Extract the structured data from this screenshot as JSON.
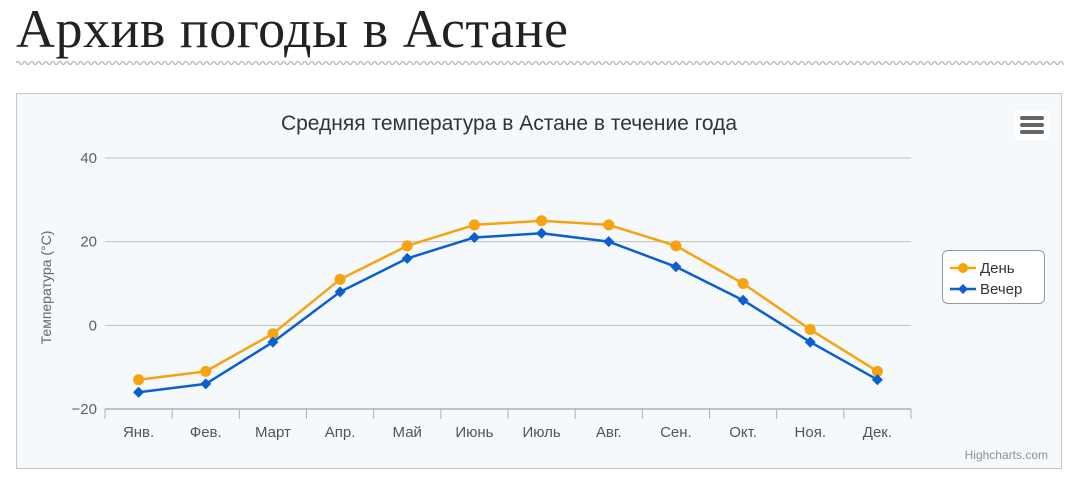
{
  "page": {
    "title": "Архив погоды в Астане"
  },
  "chart_data": {
    "type": "line",
    "title": "Средняя температура в Астане в течение года",
    "ylabel": "Температура (°C)",
    "xlabel": "",
    "categories": [
      "Янв.",
      "Фев.",
      "Март",
      "Апр.",
      "Май",
      "Июнь",
      "Июль",
      "Авг.",
      "Сен.",
      "Окт.",
      "Ноя.",
      "Дек."
    ],
    "ylim": [
      -20,
      40
    ],
    "yticks": [
      -20,
      0,
      20,
      40
    ],
    "ytick_labels": [
      "−20",
      "0",
      "20",
      "40"
    ],
    "grid": true,
    "legend_position": "right",
    "series": [
      {
        "name": "День",
        "color": "#f7a30f",
        "marker": "circle",
        "values": [
          -13,
          -11,
          -2,
          11,
          19,
          24,
          25,
          24,
          19,
          10,
          -1,
          -11
        ]
      },
      {
        "name": "Вечер",
        "color": "#0c5fcf",
        "marker": "diamond",
        "values": [
          -16,
          -14,
          -4,
          8,
          16,
          21,
          22,
          20,
          14,
          6,
          -4,
          -13
        ]
      }
    ]
  },
  "toolbar": {
    "menu_icon": "hamburger-menu-icon"
  },
  "credits": "Highcharts.com"
}
